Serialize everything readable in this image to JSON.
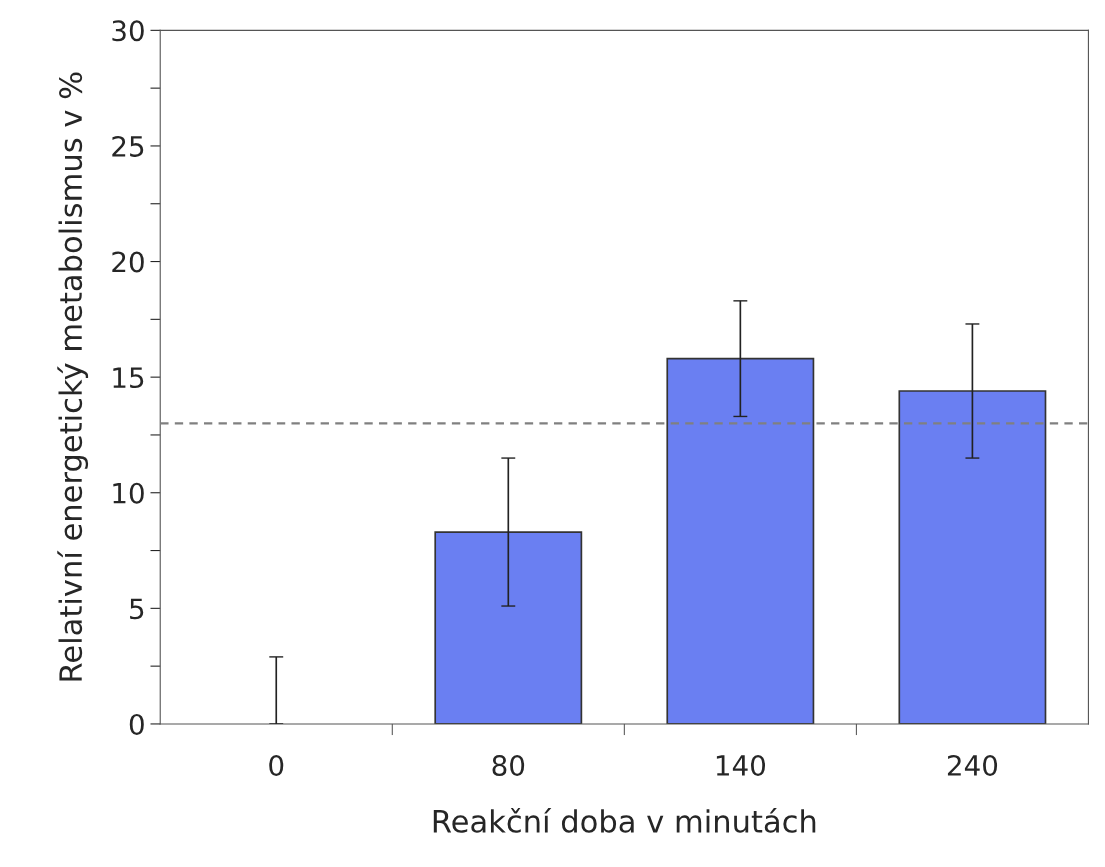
{
  "chart_data": {
    "type": "bar",
    "xlabel": "Reakční doba v minutách",
    "ylabel": "Relativní energetický metabolismus v %",
    "categories": [
      "0",
      "80",
      "140",
      "240"
    ],
    "values": [
      0,
      8.3,
      15.8,
      14.4
    ],
    "errors": [
      [
        0,
        2.9
      ],
      3.2,
      2.5,
      2.9
    ],
    "color": "#6a7ff2",
    "ylim": [
      0,
      30
    ],
    "yticks": [
      0,
      {
        "value": 2.5,
        "label": null
      },
      5,
      {
        "value": 7.5,
        "label": null
      },
      10,
      {
        "value": 12.5,
        "label": null
      },
      15,
      {
        "value": 17.5,
        "label": null
      },
      20,
      {
        "value": 22.5,
        "label": null
      },
      25,
      {
        "value": 27.5,
        "label": null
      },
      30
    ],
    "ref_lines": [
      {
        "axis": "y",
        "value": 13,
        "color": "#808080",
        "line_style": "dashed"
      }
    ],
    "grid": false,
    "legend": false
  }
}
